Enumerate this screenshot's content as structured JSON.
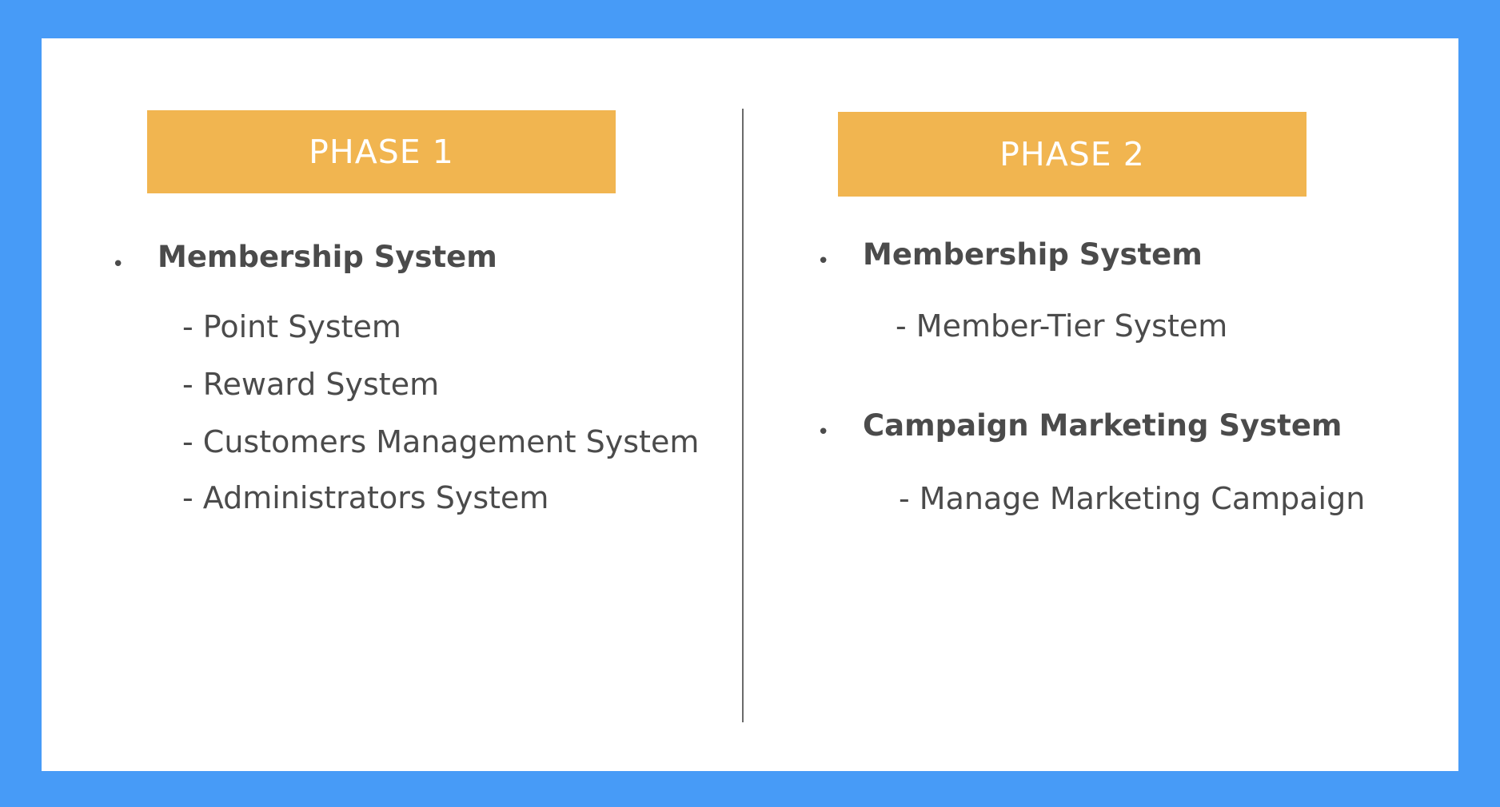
{
  "phase1": {
    "title": "PHASE 1",
    "section": {
      "heading": "Membership System",
      "items": [
        "- Point System",
        "- Reward System",
        "- Customers Management System",
        "- Administrators System"
      ]
    }
  },
  "phase2": {
    "title": "PHASE 2",
    "sections": [
      {
        "heading": "Membership System",
        "items": [
          "- Member-Tier System"
        ]
      },
      {
        "heading": "Campaign Marketing System",
        "items": [
          "- Manage Marketing Campaign"
        ]
      }
    ]
  },
  "colors": {
    "background": "#479bf7",
    "panel": "#ffffff",
    "header": "#f1b550",
    "text": "#4b4b4b"
  }
}
